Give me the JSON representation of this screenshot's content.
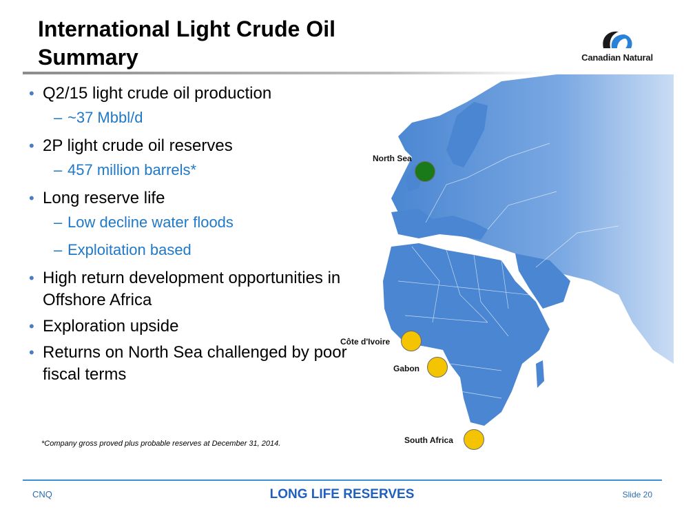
{
  "slide": {
    "title_line1": "International Light Crude Oil",
    "title_line2": "Summary",
    "logo_text": "Canadian Natural"
  },
  "bullets": [
    {
      "text": "Q2/15 light crude oil production",
      "sub": [
        "~37 Mbbl/d"
      ]
    },
    {
      "text": "2P light crude oil reserves",
      "sub": [
        "457 million barrels*"
      ]
    },
    {
      "text": "Long reserve life",
      "sub": [
        "Low decline water floods",
        "Exploitation based"
      ]
    },
    {
      "text": "High return development opportunities in Offshore Africa",
      "sub": []
    },
    {
      "text": "Exploration upside",
      "sub": []
    },
    {
      "text": "Returns on North Sea challenged by poor fiscal terms",
      "sub": []
    }
  ],
  "footnote": "*Company gross proved plus probable reserves at December 31, 2014.",
  "map": {
    "locations": [
      {
        "name": "North Sea",
        "color": "#1a7a1a"
      },
      {
        "name": "Côte d'Ivoire",
        "color": "#f5c400"
      },
      {
        "name": "Gabon",
        "color": "#f5c400"
      },
      {
        "name": "South Africa",
        "color": "#f5c400"
      }
    ],
    "land_color": "#4a86d2"
  },
  "footer": {
    "left": "CNQ",
    "center": "LONG LIFE RESERVES",
    "right": "Slide 20"
  }
}
